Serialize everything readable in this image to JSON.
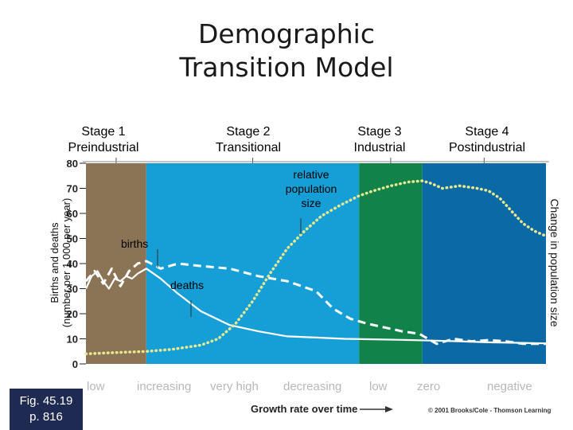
{
  "title_lines": [
    "Demographic",
    "Transition Model"
  ],
  "stages": [
    {
      "name": "Stage 1",
      "sub": "Preindustrial",
      "color": "#8b7355",
      "x_range": [
        0,
        1.05
      ]
    },
    {
      "name": "Stage 2",
      "sub": "Transitional",
      "color": "#159fd6",
      "x_range": [
        1.05,
        4.75
      ]
    },
    {
      "name": "Stage 3",
      "sub": "Industrial",
      "color": "#11834a",
      "x_range": [
        4.75,
        5.85
      ]
    },
    {
      "name": "Stage 4",
      "sub": "Postindustrial",
      "color": "#0b6aa6",
      "x_range": [
        5.85,
        8
      ]
    }
  ],
  "growth_rates": [
    "low",
    "increasing",
    "very high",
    "decreasing",
    "low",
    "zero",
    "negative"
  ],
  "annotations": {
    "relative_population": [
      "relative",
      "population",
      "size"
    ],
    "births": "births",
    "deaths": "deaths"
  },
  "fig_ref": [
    "Fig. 45.19",
    "p. 816"
  ],
  "xlabel": "Growth rate over time",
  "credit": "© 2001 Brooks/Cole - Thomson Learning",
  "chart_data": {
    "type": "line",
    "ylabel_left": "Births and deaths",
    "ylabel_left_sub": "(number per 1,000 per year)",
    "ylabel_right": "Change in population size",
    "ylim": [
      0,
      80
    ],
    "yticks": [
      0,
      10,
      20,
      30,
      40,
      50,
      60,
      70,
      80
    ],
    "xlim": [
      0,
      8
    ],
    "grid": false,
    "series": [
      {
        "name": "births",
        "style": "dashed",
        "x": [
          0,
          0.15,
          0.3,
          0.45,
          0.6,
          0.75,
          0.9,
          1.05,
          1.3,
          1.6,
          2.0,
          2.5,
          3.0,
          3.5,
          4.0,
          4.3,
          4.6,
          4.9,
          5.2,
          5.5,
          5.8,
          6.1,
          6.4,
          6.7,
          7.0,
          7.3,
          7.6,
          8.0
        ],
        "values": [
          33,
          37,
          32,
          38,
          31,
          37,
          40,
          41,
          38,
          40,
          39,
          38,
          35,
          33,
          29,
          22,
          18,
          16,
          14.5,
          13,
          12,
          8,
          10,
          9,
          9.5,
          9,
          8,
          8
        ]
      },
      {
        "name": "deaths",
        "style": "solid",
        "x": [
          0,
          0.1,
          0.2,
          0.3,
          0.4,
          0.5,
          0.6,
          0.7,
          0.8,
          0.9,
          1.05,
          1.3,
          1.6,
          2.0,
          2.5,
          3.0,
          3.5,
          4.0,
          4.5,
          5.0,
          5.5,
          6.0,
          6.5,
          7.0,
          7.5,
          8.0
        ],
        "values": [
          30,
          35,
          37,
          33,
          30,
          34,
          33,
          35,
          34,
          36,
          38,
          34,
          28,
          21,
          15.5,
          13,
          11,
          10.5,
          10,
          9.8,
          9.6,
          9.3,
          9,
          8.6,
          8.4,
          8.2
        ]
      },
      {
        "name": "relative population size",
        "style": "dotted",
        "x": [
          0,
          0.5,
          1.05,
          1.5,
          2.0,
          2.3,
          2.6,
          2.9,
          3.2,
          3.5,
          3.8,
          4.1,
          4.4,
          4.75,
          5.0,
          5.3,
          5.6,
          5.85,
          6.0,
          6.2,
          6.5,
          6.8,
          7.0,
          7.2,
          7.4,
          7.6,
          7.8,
          8.0
        ],
        "values": [
          4,
          4.5,
          5,
          5.8,
          7.5,
          10,
          16,
          25,
          36,
          46,
          53,
          59,
          63,
          67,
          69,
          71,
          72.5,
          73,
          72,
          70,
          71,
          70,
          69,
          66,
          61,
          56,
          53,
          51
        ]
      }
    ]
  }
}
